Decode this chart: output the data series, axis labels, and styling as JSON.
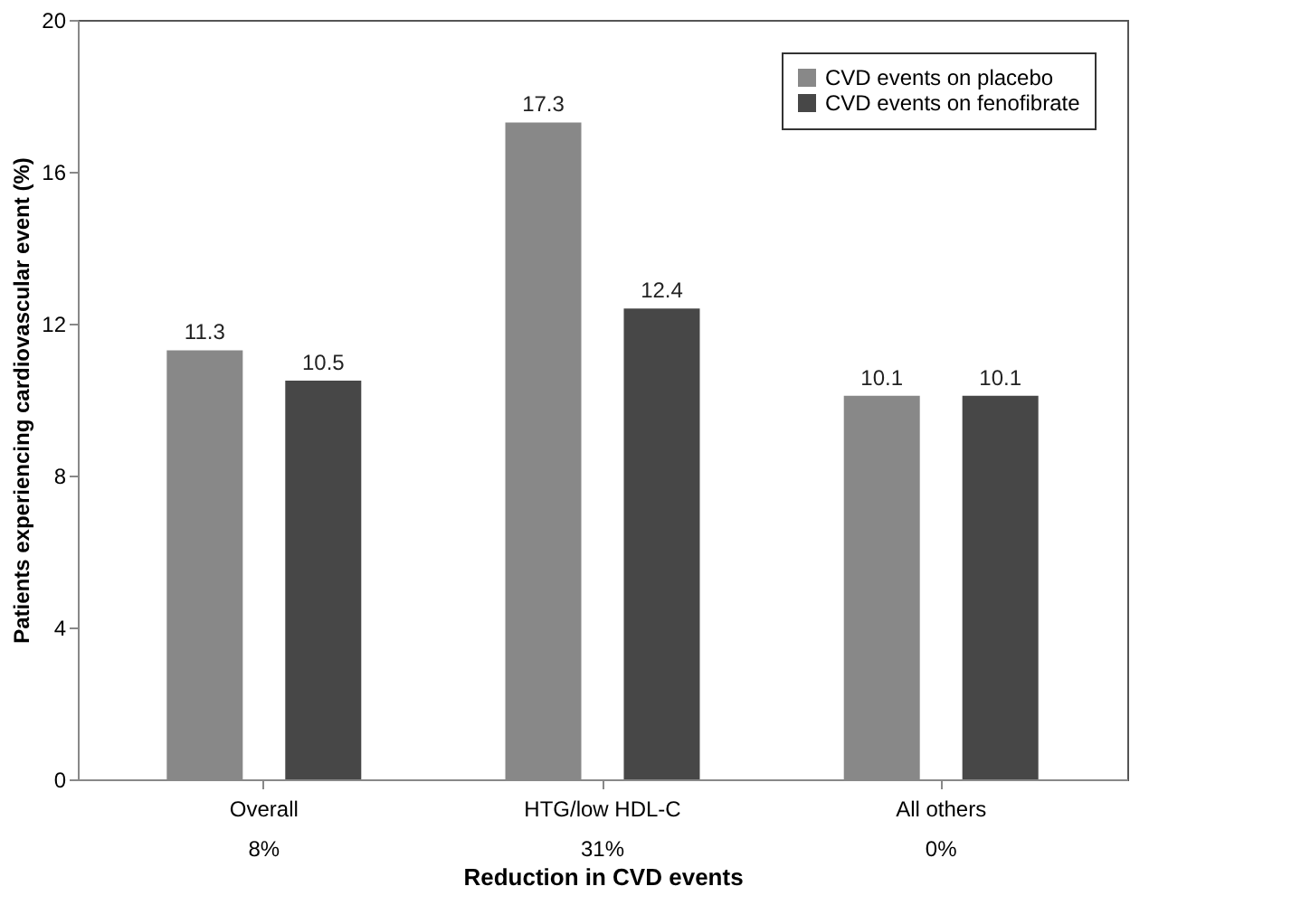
{
  "chart_data": {
    "type": "bar",
    "ylabel": "Patients experiencing cardiovascular event (%)",
    "xlabel": "Reduction in CVD events",
    "categories": [
      "Overall\n8%",
      "HTG/low HDL-C\n31%",
      "All others\n0%"
    ],
    "series": [
      {
        "name": "CVD events on placebo",
        "color": "#888888",
        "values": [
          11.3,
          17.3,
          10.1
        ]
      },
      {
        "name": "CVD events on fenofibrate",
        "color": "#474747",
        "values": [
          10.5,
          12.4,
          10.1
        ]
      }
    ],
    "ylim": [
      0,
      20
    ],
    "yticks": [
      0,
      4,
      8,
      12,
      16,
      20
    ],
    "data_labels": true,
    "grid": false,
    "legend": "top right"
  }
}
